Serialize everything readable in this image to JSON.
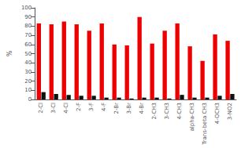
{
  "chart_data": {
    "type": "bar",
    "categories": [
      "2-Cl",
      "3-Cl",
      "4-Cl",
      "2-F",
      "3-F",
      "4-F",
      "2-Br",
      "3-Br",
      "4-Br",
      "2-CH3",
      "3-CH3",
      "4-CH3",
      "alpha-CH3",
      "Trans-beta CH3",
      "4-OCH3",
      "3-NO2"
    ],
    "series": [
      {
        "color": "#EE0000",
        "values": [
          83,
          82,
          85,
          82,
          75,
          83,
          60,
          59,
          90,
          61,
          75,
          83,
          58,
          42,
          71,
          64
        ]
      },
      {
        "color": "#111111",
        "values": [
          8,
          6,
          5,
          4,
          4,
          2,
          2,
          1,
          2,
          2,
          1,
          5,
          2,
          2,
          4,
          6
        ]
      }
    ],
    "ylabel": "%",
    "ylim": [
      0,
      100
    ],
    "yticks": [
      0,
      10,
      20,
      30,
      40,
      50,
      60,
      70,
      80,
      90,
      100
    ],
    "grid": false
  }
}
